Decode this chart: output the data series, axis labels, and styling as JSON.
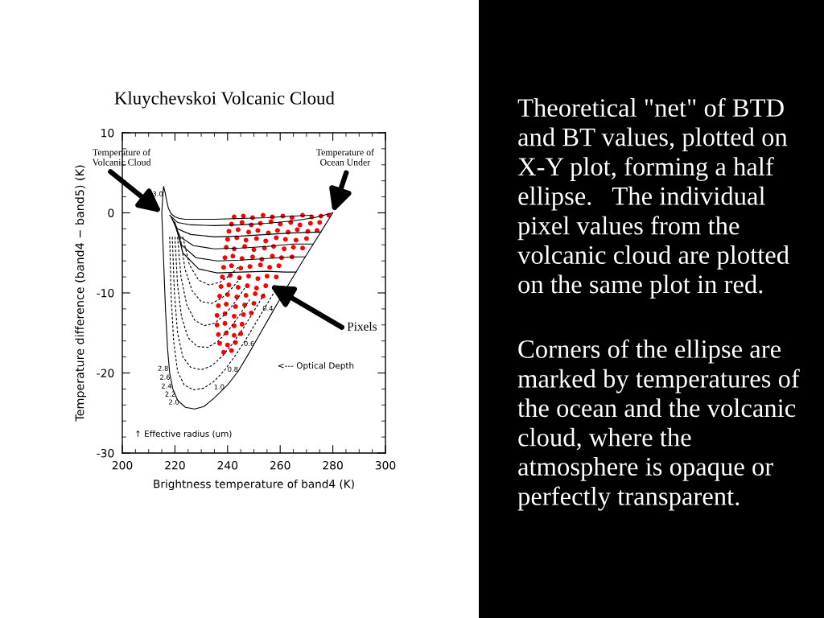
{
  "chart_data": [
    {
      "type": "line",
      "title": "Kluychevskoi Volcanic Cloud",
      "xlabel": "Brightness temperature of band4 (K)",
      "ylabel": "Temperature difference (band4 − band5) (K)",
      "xlim": [
        200,
        300
      ],
      "ylim": [
        -30,
        10
      ],
      "xticks": [
        200,
        {
          "value": 205,
          "label": null
        },
        {
          "value": 210,
          "label": null
        },
        {
          "value": 215,
          "label": null
        },
        220,
        {
          "value": 225,
          "label": null
        },
        {
          "value": 230,
          "label": null
        },
        {
          "value": 235,
          "label": null
        },
        240,
        {
          "value": 245,
          "label": null
        },
        {
          "value": 250,
          "label": null
        },
        {
          "value": 255,
          "label": null
        },
        260,
        {
          "value": 265,
          "label": null
        },
        {
          "value": 270,
          "label": null
        },
        {
          "value": 275,
          "label": null
        },
        280,
        {
          "value": 285,
          "label": null
        },
        {
          "value": 290,
          "label": null
        },
        {
          "value": 295,
          "label": null
        },
        300
      ],
      "yticks": [
        -30,
        {
          "value": -28,
          "label": null
        },
        {
          "value": -26,
          "label": null
        },
        {
          "value": -24,
          "label": null
        },
        {
          "value": -22,
          "label": null
        },
        -20,
        {
          "value": -18,
          "label": null
        },
        {
          "value": -16,
          "label": null
        },
        {
          "value": -14,
          "label": null
        },
        {
          "value": -12,
          "label": null
        },
        -10,
        {
          "value": -8,
          "label": null
        },
        {
          "value": -6,
          "label": null
        },
        {
          "value": -4,
          "label": null
        },
        {
          "value": -2,
          "label": null
        },
        0,
        {
          "value": 2,
          "label": null
        },
        {
          "value": 4,
          "label": null
        },
        {
          "value": 6,
          "label": null
        },
        {
          "value": 8,
          "label": null
        },
        10
      ],
      "series": [
        {
          "type": "line",
          "color": "#000000",
          "line_style": "solid",
          "x": [
            280,
            276,
            272,
            268,
            264,
            260,
            256,
            252,
            248,
            244,
            240,
            235,
            231,
            227.5,
            224,
            221,
            219.2,
            218,
            217.2,
            216.4,
            215.7,
            215,
            215.4,
            215.7,
            216.3,
            217,
            217.5,
            218.5,
            220,
            221.6,
            224,
            228,
            235,
            245,
            255,
            265,
            272
          ],
          "values": [
            0,
            -2.1,
            -4.2,
            -6.3,
            -8.5,
            -10.7,
            -13,
            -15.3,
            -17.6,
            -19.8,
            -21.5,
            -23.1,
            -24.2,
            -24.5,
            -24.3,
            -23.4,
            -22,
            -20,
            -17,
            -12,
            -6,
            0,
            2.2,
            3.3,
            2.5,
            1.3,
            0.6,
            -0.1,
            -0.5,
            -0.7,
            -0.8,
            -0.8,
            -0.8,
            -0.7,
            -0.6,
            -0.4,
            -0.3
          ]
        },
        {
          "type": "line",
          "color": "#000000",
          "line_style": "solid",
          "x": [
            218,
            221,
            226,
            235,
            245,
            255,
            265,
            273,
            280
          ],
          "values": [
            -0.3,
            -1.2,
            -1.5,
            -1.6,
            -1.5,
            -1.3,
            -1.0,
            -0.6,
            0
          ]
        },
        {
          "type": "line",
          "color": "#000000",
          "line_style": "solid",
          "x": [
            218.5,
            221,
            226,
            235,
            245,
            255,
            265,
            275.5
          ],
          "values": [
            -0.5,
            -2.0,
            -2.7,
            -3.0,
            -2.9,
            -2.7,
            -2.5,
            -2.4
          ]
        },
        {
          "type": "line",
          "color": "#000000",
          "line_style": "solid",
          "x": [
            219,
            222,
            227,
            235,
            245,
            255,
            265,
            272.5
          ],
          "values": [
            -0.8,
            -3.0,
            -4.1,
            -4.5,
            -4.4,
            -4.2,
            -3.9,
            -3.9
          ]
        },
        {
          "type": "line",
          "color": "#000000",
          "line_style": "solid",
          "x": [
            219.5,
            222.5,
            228,
            236,
            245,
            255,
            265,
            269.5
          ],
          "values": [
            -1,
            -4,
            -5.6,
            -6.0,
            -5.9,
            -5.7,
            -5.5,
            -5.5
          ]
        },
        {
          "type": "line",
          "color": "#000000",
          "line_style": "solid",
          "x": [
            220,
            223,
            229,
            236,
            245,
            255,
            262,
            266
          ],
          "values": [
            -1.2,
            -5,
            -7.0,
            -7.5,
            -7.4,
            -7.3,
            -7.4,
            -7.4
          ]
        },
        {
          "type": "line",
          "color": "#000000",
          "line_style": "dashed",
          "x": [
            218,
            218.5,
            219.5,
            221,
            223.5,
            227,
            231,
            235,
            239,
            243,
            247,
            251,
            255,
            259
          ],
          "values": [
            -3,
            -10,
            -16,
            -19.8,
            -21.5,
            -22.1,
            -21.9,
            -21.0,
            -19.6,
            -17.8,
            -15.8,
            -13.6,
            -11.4,
            -9.2
          ]
        },
        {
          "type": "line",
          "color": "#000000",
          "line_style": "dashed",
          "x": [
            219,
            219.8,
            221,
            223,
            226,
            230,
            234,
            238,
            242,
            246,
            250,
            254
          ],
          "values": [
            -3,
            -10,
            -15,
            -18,
            -19.3,
            -19.6,
            -19.1,
            -17.9,
            -16.3,
            -14.4,
            -12.3,
            -10.1
          ]
        },
        {
          "type": "line",
          "color": "#000000",
          "line_style": "dashed",
          "x": [
            220,
            221,
            222.5,
            225,
            228.5,
            232.5,
            236.5,
            240.5,
            244.5,
            248.5
          ],
          "values": [
            -3,
            -9,
            -13,
            -15.6,
            -16.7,
            -16.8,
            -16.0,
            -14.6,
            -12.8,
            -10.8
          ]
        },
        {
          "type": "line",
          "color": "#000000",
          "line_style": "dashed",
          "x": [
            221,
            222.3,
            224.5,
            227.5,
            231,
            235,
            239,
            243,
            246.5
          ],
          "values": [
            -3,
            -8,
            -11.5,
            -13.4,
            -14.1,
            -13.8,
            -12.7,
            -11.1,
            -9.4
          ]
        },
        {
          "type": "line",
          "color": "#000000",
          "line_style": "dashed",
          "x": [
            222,
            223.8,
            226.5,
            230,
            234,
            238,
            242,
            245
          ],
          "values": [
            -3,
            -7,
            -9.7,
            -11.1,
            -11.3,
            -10.6,
            -9.3,
            -8.1
          ]
        },
        {
          "type": "line",
          "color": "#000000",
          "line_style": "dashed",
          "x": [
            223,
            225.5,
            229,
            233,
            237,
            241,
            244
          ],
          "values": [
            -3,
            -6.5,
            -8.4,
            -9,
            -8.7,
            -7.8,
            -6.8
          ]
        },
        {
          "type": "scatter",
          "color": "#ff0000",
          "marker": "circle",
          "x": [
            242.5,
            246,
            249.5,
            253.5,
            257,
            261,
            264.5,
            268.5,
            272,
            275.5,
            278.5,
            241.5,
            245.5,
            249,
            252.5,
            256.5,
            260,
            264,
            267.5,
            271.5,
            275,
            240.5,
            244,
            248,
            251.5,
            255.5,
            259,
            263,
            266.5,
            270.5,
            274,
            240,
            243.5,
            247,
            251,
            254.5,
            258.5,
            262,
            266,
            270,
            239.5,
            242.5,
            246.5,
            250,
            254,
            257.5,
            261.5,
            265,
            268.5,
            239,
            242,
            245.5,
            249.5,
            253,
            257,
            260.5,
            264.5,
            238.5,
            241.5,
            245,
            248.5,
            252.5,
            256,
            259.5,
            238,
            241,
            244.5,
            248,
            251.5,
            255,
            258.5,
            237.5,
            240.5,
            244,
            247.5,
            251,
            254.5,
            237,
            240,
            243.5,
            247,
            250.5,
            253.5,
            236.5,
            239.5,
            243,
            246.5,
            250,
            236,
            239,
            242.5,
            246,
            249,
            236,
            239,
            242.5,
            245.5,
            236.5,
            239.5,
            242.5,
            245,
            237,
            240,
            243,
            238.5,
            241.5
          ],
          "values": [
            -0.5,
            -0.4,
            -0.6,
            -0.3,
            -0.5,
            -0.4,
            -0.6,
            -0.3,
            -0.5,
            -0.4,
            -0.3,
            -1.4,
            -1.2,
            -1.5,
            -1.3,
            -1.1,
            -1.4,
            -1.2,
            -1.5,
            -1.3,
            -1.2,
            -2.3,
            -2.1,
            -2.4,
            -2.2,
            -2.5,
            -2.2,
            -2.4,
            -2.1,
            -2.3,
            -2.2,
            -3.3,
            -3.1,
            -3.4,
            -3.2,
            -3.5,
            -3.1,
            -3.3,
            -3.4,
            -3.2,
            -4.3,
            -4.5,
            -4.2,
            -4.6,
            -4.4,
            -4.2,
            -4.5,
            -4.3,
            -4.4,
            -5.6,
            -5.4,
            -5.7,
            -5.5,
            -5.8,
            -5.4,
            -5.6,
            -5.5,
            -6.8,
            -6.6,
            -6.9,
            -6.7,
            -6.5,
            -6.8,
            -6.6,
            -8.0,
            -7.8,
            -8.1,
            -7.9,
            -8.2,
            -7.9,
            -8.0,
            -9.2,
            -9.0,
            -9.3,
            -9.1,
            -9.4,
            -9.1,
            -10.4,
            -10.2,
            -10.5,
            -10.3,
            -10.1,
            -10.4,
            -11.6,
            -11.4,
            -11.7,
            -11.5,
            -11.3,
            -12.8,
            -12.6,
            -12.9,
            -12.7,
            -12.5,
            -14.0,
            -13.8,
            -14.1,
            -13.9,
            -15.2,
            -15.0,
            -15.3,
            -15.1,
            -16.3,
            -16.5,
            -16.2,
            -17.4,
            -17.2
          ]
        }
      ],
      "annotations": [
        {
          "text": "Temperature of\nVolcanic Cloud",
          "x": 215,
          "y": 0
        },
        {
          "text": "Temperature of\nOcean Under",
          "x": 280,
          "y": 0
        },
        "Pixels",
        "<--- Optical Depth",
        "↑ Effective radius (um)",
        "3.0",
        "2.8",
        "2.6",
        "2.4",
        "2.2",
        "2.0",
        "0.4",
        "0.6",
        "0.8",
        "1.0"
      ]
    },
    {
      "type": "other",
      "annotations": [
        "Theoretical \"net\" of BTD\nand BT values, plotted on\nX-Y plot, forming a half\nellipse.   The individual\npixel values from the\nvolcanic cloud are plotted\non the same plot in red.",
        "Corners of the ellipse are\nmarked by temperatures of\nthe ocean and the volcanic\ncloud, where the\natmosphere is opaque or\nperfectly transparent."
      ]
    }
  ]
}
